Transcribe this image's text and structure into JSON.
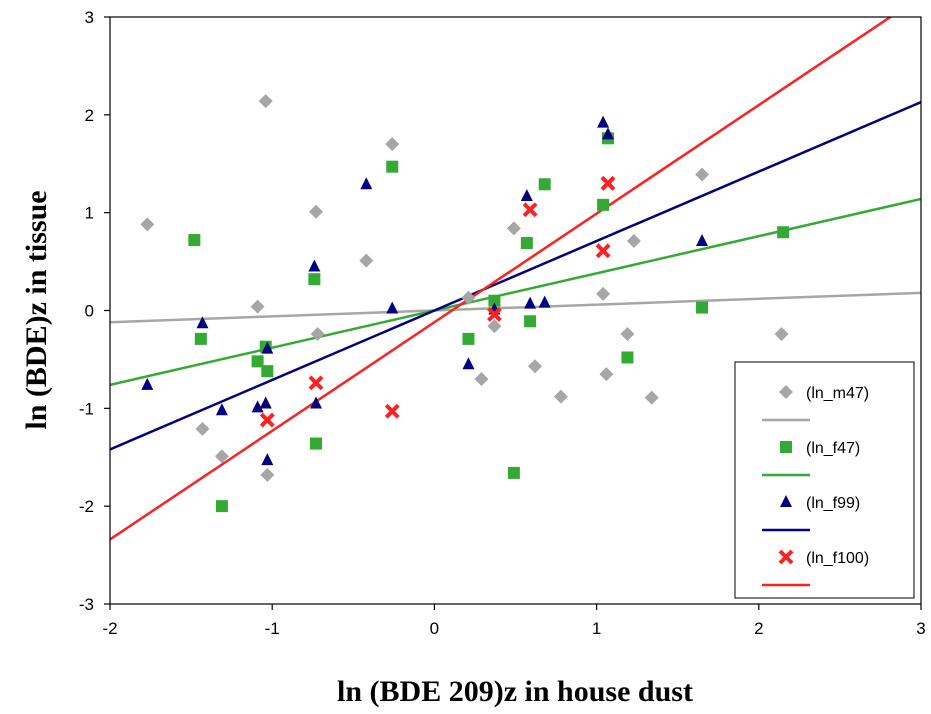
{
  "chart_data": {
    "type": "scatter",
    "xlabel": "ln (BDE 209)z in house dust",
    "ylabel": "ln (BDE)z in tissue",
    "xlim": [
      -2,
      3
    ],
    "ylim": [
      -3,
      3
    ],
    "xticks": [
      -2,
      -1,
      0,
      1,
      2,
      3
    ],
    "yticks": [
      -3,
      -2,
      -1,
      0,
      1,
      2,
      3
    ],
    "grid": false,
    "legend_position": "bottom-right",
    "series": [
      {
        "name": "(ln_m47)",
        "marker": "diamond",
        "color": "#a6a6a6",
        "points": [
          [
            -1.77,
            0.88
          ],
          [
            -1.04,
            2.14
          ],
          [
            -1.09,
            0.04
          ],
          [
            -1.43,
            -1.21
          ],
          [
            -1.31,
            -1.49
          ],
          [
            -1.03,
            -1.68
          ],
          [
            -0.73,
            1.01
          ],
          [
            -0.72,
            -0.24
          ],
          [
            -0.42,
            0.51
          ],
          [
            -0.26,
            1.7
          ],
          [
            0.21,
            0.13
          ],
          [
            0.29,
            -0.7
          ],
          [
            0.37,
            -0.16
          ],
          [
            0.49,
            0.84
          ],
          [
            0.62,
            -0.57
          ],
          [
            0.78,
            -0.88
          ],
          [
            1.04,
            0.17
          ],
          [
            1.06,
            -0.65
          ],
          [
            1.19,
            -0.24
          ],
          [
            1.23,
            0.71
          ],
          [
            1.34,
            -0.89
          ],
          [
            1.65,
            1.39
          ],
          [
            2.14,
            -0.24
          ]
        ],
        "fit": {
          "intercept": 0.0,
          "slope": 0.06
        }
      },
      {
        "name": "(ln_f47)",
        "marker": "square",
        "color": "#33aa33",
        "points": [
          [
            -1.48,
            0.72
          ],
          [
            -1.44,
            -0.29
          ],
          [
            -1.31,
            -2.0
          ],
          [
            -1.09,
            -0.52
          ],
          [
            -1.04,
            -0.37
          ],
          [
            -1.03,
            -0.62
          ],
          [
            -0.74,
            0.32
          ],
          [
            -0.73,
            -1.36
          ],
          [
            -0.26,
            1.47
          ],
          [
            0.21,
            -0.29
          ],
          [
            0.37,
            0.1
          ],
          [
            0.49,
            -1.66
          ],
          [
            0.57,
            0.69
          ],
          [
            0.59,
            -0.11
          ],
          [
            0.68,
            1.29
          ],
          [
            1.04,
            1.08
          ],
          [
            1.07,
            1.76
          ],
          [
            1.19,
            -0.48
          ],
          [
            1.65,
            0.03
          ],
          [
            2.15,
            0.8
          ]
        ],
        "fit": {
          "intercept": 0.0,
          "slope": 0.38
        }
      },
      {
        "name": "(ln_f99)",
        "marker": "triangle",
        "color": "#000080",
        "points": [
          [
            -1.77,
            -0.76
          ],
          [
            -1.43,
            -0.13
          ],
          [
            -1.31,
            -1.02
          ],
          [
            -1.09,
            -0.99
          ],
          [
            -1.04,
            -0.95
          ],
          [
            -1.03,
            -1.53
          ],
          [
            -1.03,
            -0.39
          ],
          [
            -0.74,
            0.45
          ],
          [
            -0.73,
            -0.95
          ],
          [
            -0.42,
            1.29
          ],
          [
            -0.26,
            0.02
          ],
          [
            0.21,
            -0.55
          ],
          [
            0.37,
            0.01
          ],
          [
            0.57,
            1.17
          ],
          [
            0.59,
            0.07
          ],
          [
            0.68,
            0.08
          ],
          [
            1.04,
            1.92
          ],
          [
            1.07,
            1.8
          ],
          [
            1.65,
            0.71
          ]
        ],
        "fit": {
          "intercept": 0.0,
          "slope": 0.71
        }
      },
      {
        "name": "(ln_f100)",
        "marker": "x",
        "color": "#ff2020",
        "points": [
          [
            -1.03,
            -1.12
          ],
          [
            -0.73,
            -0.74
          ],
          [
            -0.26,
            -1.03
          ],
          [
            0.37,
            -0.04
          ],
          [
            0.59,
            1.03
          ],
          [
            1.04,
            0.61
          ],
          [
            1.07,
            1.3
          ]
        ],
        "fit": {
          "intercept": -0.12,
          "slope": 1.11
        }
      }
    ]
  }
}
